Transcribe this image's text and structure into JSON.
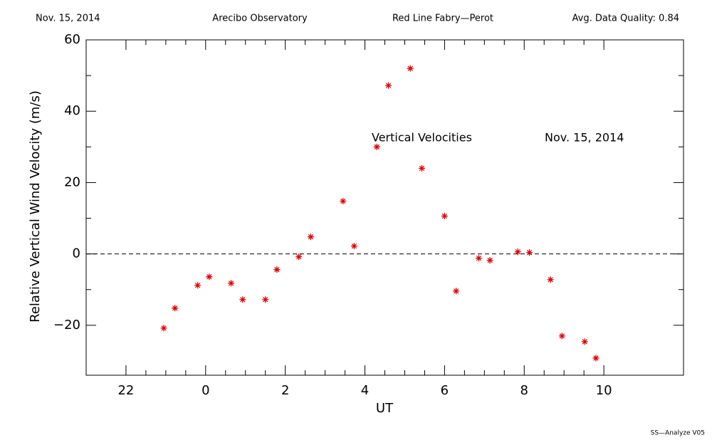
{
  "header": {
    "date": "Nov. 15, 2014",
    "site": "Arecibo Observatory",
    "instrument": "Red Line Fabry—Perot",
    "quality": "Avg. Data Quality: 0.84"
  },
  "footer": "SS—Analyze V05",
  "chart_data": {
    "type": "scatter",
    "color": "#e00000",
    "xlabel": "UT",
    "ylabel": "Relative Vertical Wind Velocity (m/s)",
    "annotations": [
      "Vertical Velocities",
      "Nov. 15, 2014"
    ],
    "reference_line": 0,
    "xlim": [
      -3,
      12
    ],
    "ylim": [
      -34,
      60
    ],
    "xticks": [
      {
        "value": -2,
        "label": "22"
      },
      0,
      2,
      4,
      6,
      8,
      10
    ],
    "yticks": [
      {
        "value": -20,
        "label": "−20"
      },
      0,
      20,
      40,
      60
    ],
    "x": [
      -1.05,
      -0.77,
      -0.2,
      0.09,
      0.64,
      0.93,
      1.5,
      1.79,
      2.34,
      2.64,
      3.45,
      3.73,
      4.3,
      4.59,
      5.14,
      5.43,
      6.0,
      6.29,
      6.86,
      7.14,
      7.84,
      8.13,
      8.66,
      8.95,
      9.52,
      9.8
    ],
    "values": [
      -20.8,
      -15.2,
      -8.8,
      -6.4,
      -8.2,
      -12.8,
      -12.8,
      -4.4,
      -0.8,
      4.8,
      14.8,
      2.2,
      30,
      47.2,
      52,
      24,
      10.6,
      -10.4,
      -1.2,
      -1.8,
      0.6,
      0.4,
      -7.2,
      -23,
      -24.6,
      -29.2
    ]
  }
}
